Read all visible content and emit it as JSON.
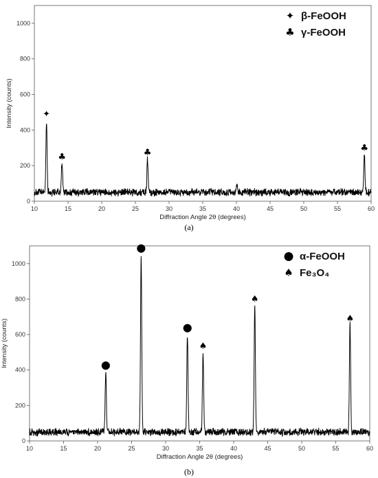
{
  "chart_data": [
    {
      "type": "line",
      "panel_label": "(a)",
      "xlabel": "Diffraction Angle 2θ (degrees)",
      "ylabel": "Intensity (counts)",
      "xlim": [
        10,
        60
      ],
      "ylim": [
        0,
        1100
      ],
      "xticks": [
        10,
        15,
        20,
        25,
        30,
        35,
        40,
        45,
        50,
        55,
        60
      ],
      "yticks": [
        0,
        200,
        400,
        600,
        800,
        1000
      ],
      "baseline": 50,
      "peaks": [
        {
          "x": 11.8,
          "y": 455,
          "marker": "β-FeOOH"
        },
        {
          "x": 14.1,
          "y": 215,
          "marker": "γ-FeOOH"
        },
        {
          "x": 26.8,
          "y": 240,
          "marker": "γ-FeOOH"
        },
        {
          "x": 40.1,
          "y": 80,
          "marker": ""
        },
        {
          "x": 59.0,
          "y": 265,
          "marker": "γ-FeOOH"
        }
      ],
      "legend": {
        "placement": "top-right",
        "entries": [
          {
            "symbol": "✦",
            "label": "β-FeOOH"
          },
          {
            "symbol": "♣",
            "label": "γ-FeOOH"
          }
        ]
      },
      "grid": false
    },
    {
      "type": "line",
      "panel_label": "(b)",
      "xlabel": "Diffraction Angle 2θ (degrees)",
      "ylabel": "Intensity (counts)",
      "xlim": [
        10,
        60
      ],
      "ylim": [
        0,
        1100
      ],
      "xticks": [
        10,
        15,
        20,
        25,
        30,
        35,
        40,
        45,
        50,
        55,
        60
      ],
      "yticks": [
        0,
        200,
        400,
        600,
        800,
        1000
      ],
      "baseline": 50,
      "peaks": [
        {
          "x": 21.2,
          "y": 390,
          "marker": "α-FeOOH"
        },
        {
          "x": 26.4,
          "y": 1050,
          "marker": "α-FeOOH"
        },
        {
          "x": 33.2,
          "y": 600,
          "marker": "α-FeOOH"
        },
        {
          "x": 35.5,
          "y": 500,
          "marker": "Fe₃O₄"
        },
        {
          "x": 43.1,
          "y": 765,
          "marker": "Fe₃O₄"
        },
        {
          "x": 57.1,
          "y": 655,
          "marker": "Fe₃O₄"
        }
      ],
      "legend": {
        "placement": "top-right",
        "entries": [
          {
            "symbol": "●",
            "label": "α-FeOOH"
          },
          {
            "symbol": "♠",
            "label": "Fe₃O₄"
          }
        ]
      },
      "grid": false
    }
  ],
  "colors": {
    "line": "#000000",
    "axis": "#555555"
  }
}
